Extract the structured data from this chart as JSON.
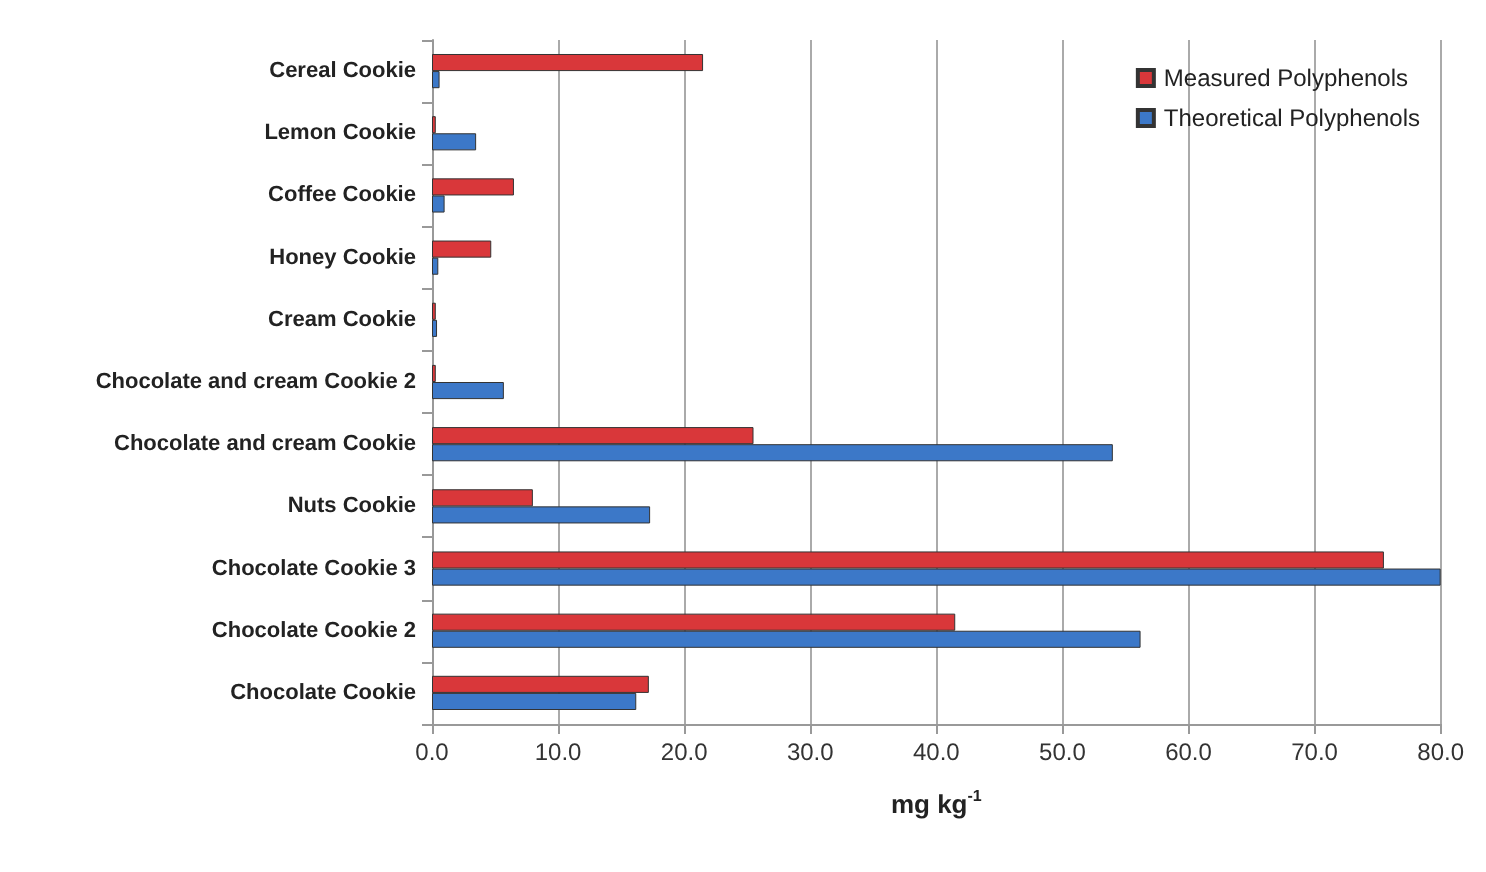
{
  "chart_data": {
    "type": "bar",
    "orientation": "horizontal",
    "xlabel": "mg kg$^{-1}$",
    "categories": [
      "Cereal Cookie",
      "Lemon Cookie",
      "Coffee Cookie",
      "Honey Cookie",
      "Cream Cookie",
      "Chocolate and cream Cookie 2",
      "Chocolate and cream Cookie",
      "Nuts Cookie",
      "Chocolate Cookie 3",
      "Chocolate Cookie 2",
      "Chocolate Cookie"
    ],
    "series": [
      {
        "name": "Measured Polyphenols",
        "color": "#d9373a",
        "values": [
          21.5,
          0.3,
          6.5,
          4.7,
          0.3,
          0.3,
          25.5,
          8.0,
          75.5,
          41.5,
          17.2
        ]
      },
      {
        "name": "Theoretical Polyphenols",
        "color": "#3c78c8",
        "values": [
          0.6,
          3.5,
          1.0,
          0.5,
          0.4,
          5.7,
          54.0,
          17.3,
          80.0,
          56.2,
          16.2
        ]
      }
    ],
    "xlim": [
      0,
      80
    ],
    "xticks": [
      {
        "value": 0,
        "label": "0.0"
      },
      {
        "value": 10,
        "label": "10.0"
      },
      {
        "value": 20,
        "label": "20.0"
      },
      {
        "value": 30,
        "label": "30.0"
      },
      {
        "value": 40,
        "label": "40.0"
      },
      {
        "value": 50,
        "label": "50.0"
      },
      {
        "value": 60,
        "label": "60.0"
      },
      {
        "value": 70,
        "label": "70.0"
      },
      {
        "value": 80,
        "label": "80.0"
      }
    ],
    "grid": "x",
    "legend": "top right"
  }
}
